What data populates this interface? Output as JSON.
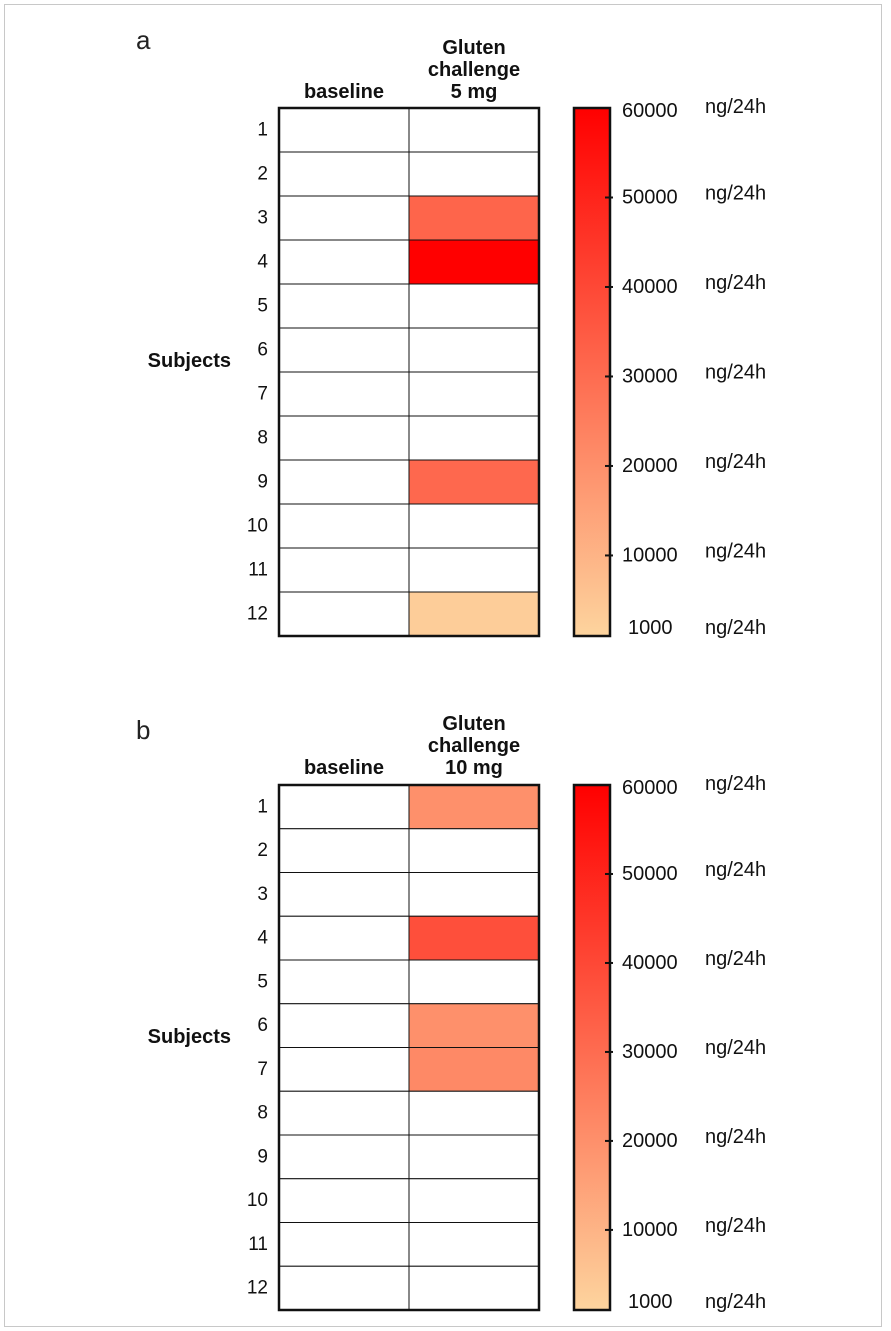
{
  "chart_data": [
    {
      "type": "heatmap",
      "panel_label": "a",
      "columns": [
        "baseline",
        "Gluten challenge 5 mg"
      ],
      "column_header_lines": [
        [
          "baseline"
        ],
        [
          "Gluten",
          "challenge",
          "5 mg"
        ]
      ],
      "row_axis_label": "Subjects",
      "rows": [
        "1",
        "2",
        "3",
        "4",
        "5",
        "6",
        "7",
        "8",
        "9",
        "10",
        "11",
        "12"
      ],
      "values_ng_per_24h": {
        "baseline": [
          null,
          null,
          null,
          null,
          null,
          null,
          null,
          null,
          null,
          null,
          null,
          null
        ],
        "Gluten challenge 5 mg": [
          null,
          null,
          32000,
          60000,
          null,
          null,
          null,
          null,
          31000,
          null,
          null,
          3000
        ]
      },
      "colorbar": {
        "min": 1000,
        "max": 60000,
        "ticks": [
          1000,
          10000,
          20000,
          30000,
          40000,
          50000,
          60000
        ],
        "tick_labels": [
          "1000",
          "10000",
          "20000",
          "30000",
          "40000",
          "50000",
          "60000"
        ],
        "unit": "ng/24h",
        "color_low": "#fdd49e",
        "color_high": "#ff0000"
      }
    },
    {
      "type": "heatmap",
      "panel_label": "b",
      "columns": [
        "baseline",
        "Gluten challenge 10 mg"
      ],
      "column_header_lines": [
        [
          "baseline"
        ],
        [
          "Gluten",
          "challenge",
          "10 mg"
        ]
      ],
      "row_axis_label": "Subjects",
      "rows": [
        "1",
        "2",
        "3",
        "4",
        "5",
        "6",
        "7",
        "8",
        "9",
        "10",
        "11",
        "12"
      ],
      "values_ng_per_24h": {
        "baseline": [
          null,
          null,
          null,
          null,
          null,
          null,
          null,
          null,
          null,
          null,
          null,
          null
        ],
        "Gluten challenge 10 mg": [
          20000,
          null,
          null,
          38000,
          null,
          20000,
          22000,
          null,
          null,
          null,
          null,
          null
        ]
      },
      "colorbar": {
        "min": 1000,
        "max": 60000,
        "ticks": [
          1000,
          10000,
          20000,
          30000,
          40000,
          50000,
          60000
        ],
        "tick_labels": [
          "1000",
          "10000",
          "20000",
          "30000",
          "40000",
          "50000",
          "60000"
        ],
        "unit": "ng/24h",
        "color_low": "#fdd49e",
        "color_high": "#ff0000"
      }
    }
  ]
}
